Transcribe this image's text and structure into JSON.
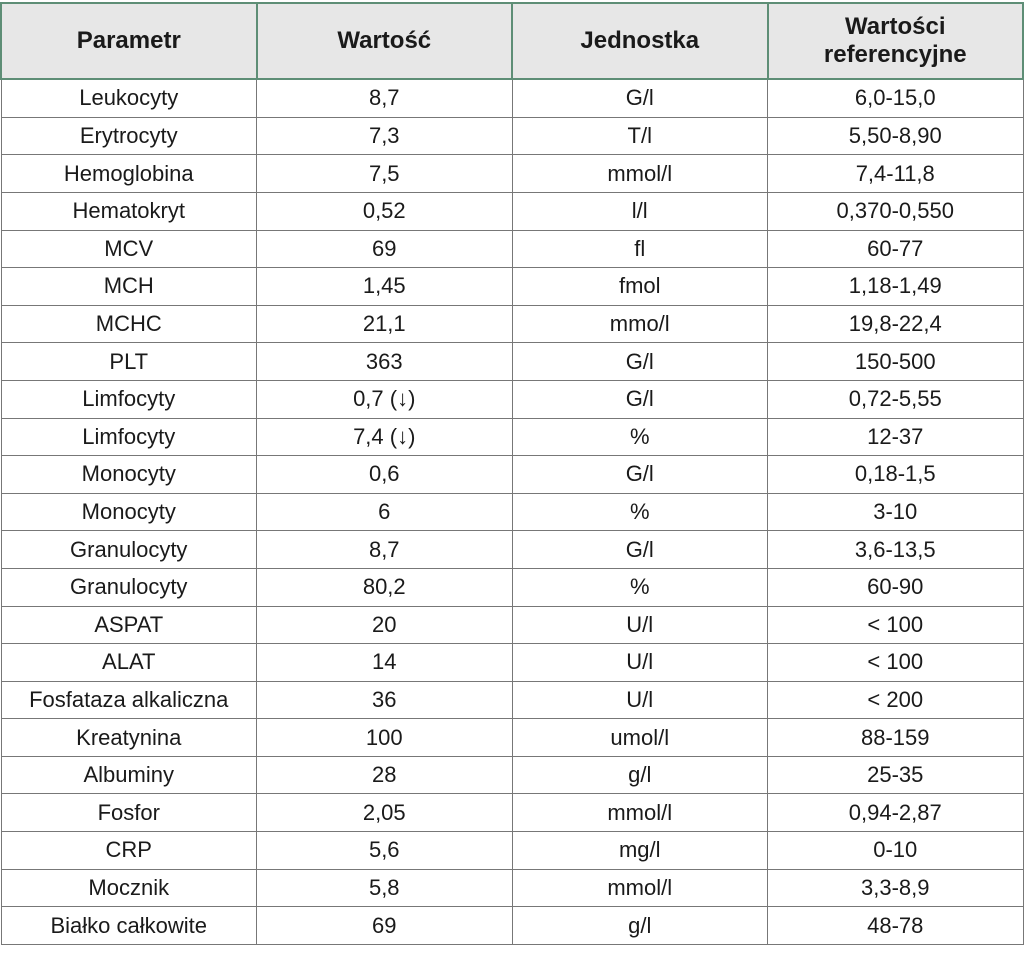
{
  "colors": {
    "header_bg": "#e7e7e7",
    "header_border_green": "#5e8e76",
    "body_border_gray": "#777777",
    "text": "#1a1a1a",
    "row_bg": "#ffffff"
  },
  "table": {
    "headers": [
      "Parametr",
      "Wartość",
      "Jednostka",
      "Wartości referencyjne"
    ],
    "rows": [
      {
        "parameter": "Leukocyty",
        "value": "8,7",
        "unit": "G/l",
        "reference": "6,0-15,0"
      },
      {
        "parameter": "Erytrocyty",
        "value": "7,3",
        "unit": "T/l",
        "reference": "5,50-8,90"
      },
      {
        "parameter": "Hemoglobina",
        "value": "7,5",
        "unit": "mmol/l",
        "reference": "7,4-11,8"
      },
      {
        "parameter": "Hematokryt",
        "value": "0,52",
        "unit": "l/l",
        "reference": "0,370-0,550"
      },
      {
        "parameter": "MCV",
        "value": "69",
        "unit": "fl",
        "reference": "60-77"
      },
      {
        "parameter": "MCH",
        "value": "1,45",
        "unit": "fmol",
        "reference": "1,18-1,49"
      },
      {
        "parameter": "MCHC",
        "value": "21,1",
        "unit": "mmo/l",
        "reference": "19,8-22,4"
      },
      {
        "parameter": "PLT",
        "value": "363",
        "unit": "G/l",
        "reference": "150-500"
      },
      {
        "parameter": "Limfocyty",
        "value": "0,7 (↓)",
        "unit": "G/l",
        "reference": "0,72-5,55"
      },
      {
        "parameter": "Limfocyty",
        "value": "7,4 (↓)",
        "unit": "%",
        "reference": "12-37"
      },
      {
        "parameter": "Monocyty",
        "value": "0,6",
        "unit": "G/l",
        "reference": "0,18-1,5"
      },
      {
        "parameter": "Monocyty",
        "value": "6",
        "unit": "%",
        "reference": "3-10"
      },
      {
        "parameter": "Granulocyty",
        "value": "8,7",
        "unit": "G/l",
        "reference": "3,6-13,5"
      },
      {
        "parameter": "Granulocyty",
        "value": "80,2",
        "unit": "%",
        "reference": "60-90"
      },
      {
        "parameter": "ASPAT",
        "value": "20",
        "unit": "U/l",
        "reference": "< 100"
      },
      {
        "parameter": "ALAT",
        "value": "14",
        "unit": "U/l",
        "reference": "< 100"
      },
      {
        "parameter": "Fosfataza alkaliczna",
        "value": "36",
        "unit": "U/l",
        "reference": "< 200"
      },
      {
        "parameter": "Kreatynina",
        "value": "100",
        "unit": "umol/l",
        "reference": "88-159"
      },
      {
        "parameter": "Albuminy",
        "value": "28",
        "unit": "g/l",
        "reference": "25-35"
      },
      {
        "parameter": "Fosfor",
        "value": "2,05",
        "unit": "mmol/l",
        "reference": "0,94-2,87"
      },
      {
        "parameter": "CRP",
        "value": "5,6",
        "unit": "mg/l",
        "reference": "0-10"
      },
      {
        "parameter": "Mocznik",
        "value": "5,8",
        "unit": "mmol/l",
        "reference": "3,3-8,9"
      },
      {
        "parameter": "Białko całkowite",
        "value": "69",
        "unit": "g/l",
        "reference": "48-78"
      }
    ]
  }
}
